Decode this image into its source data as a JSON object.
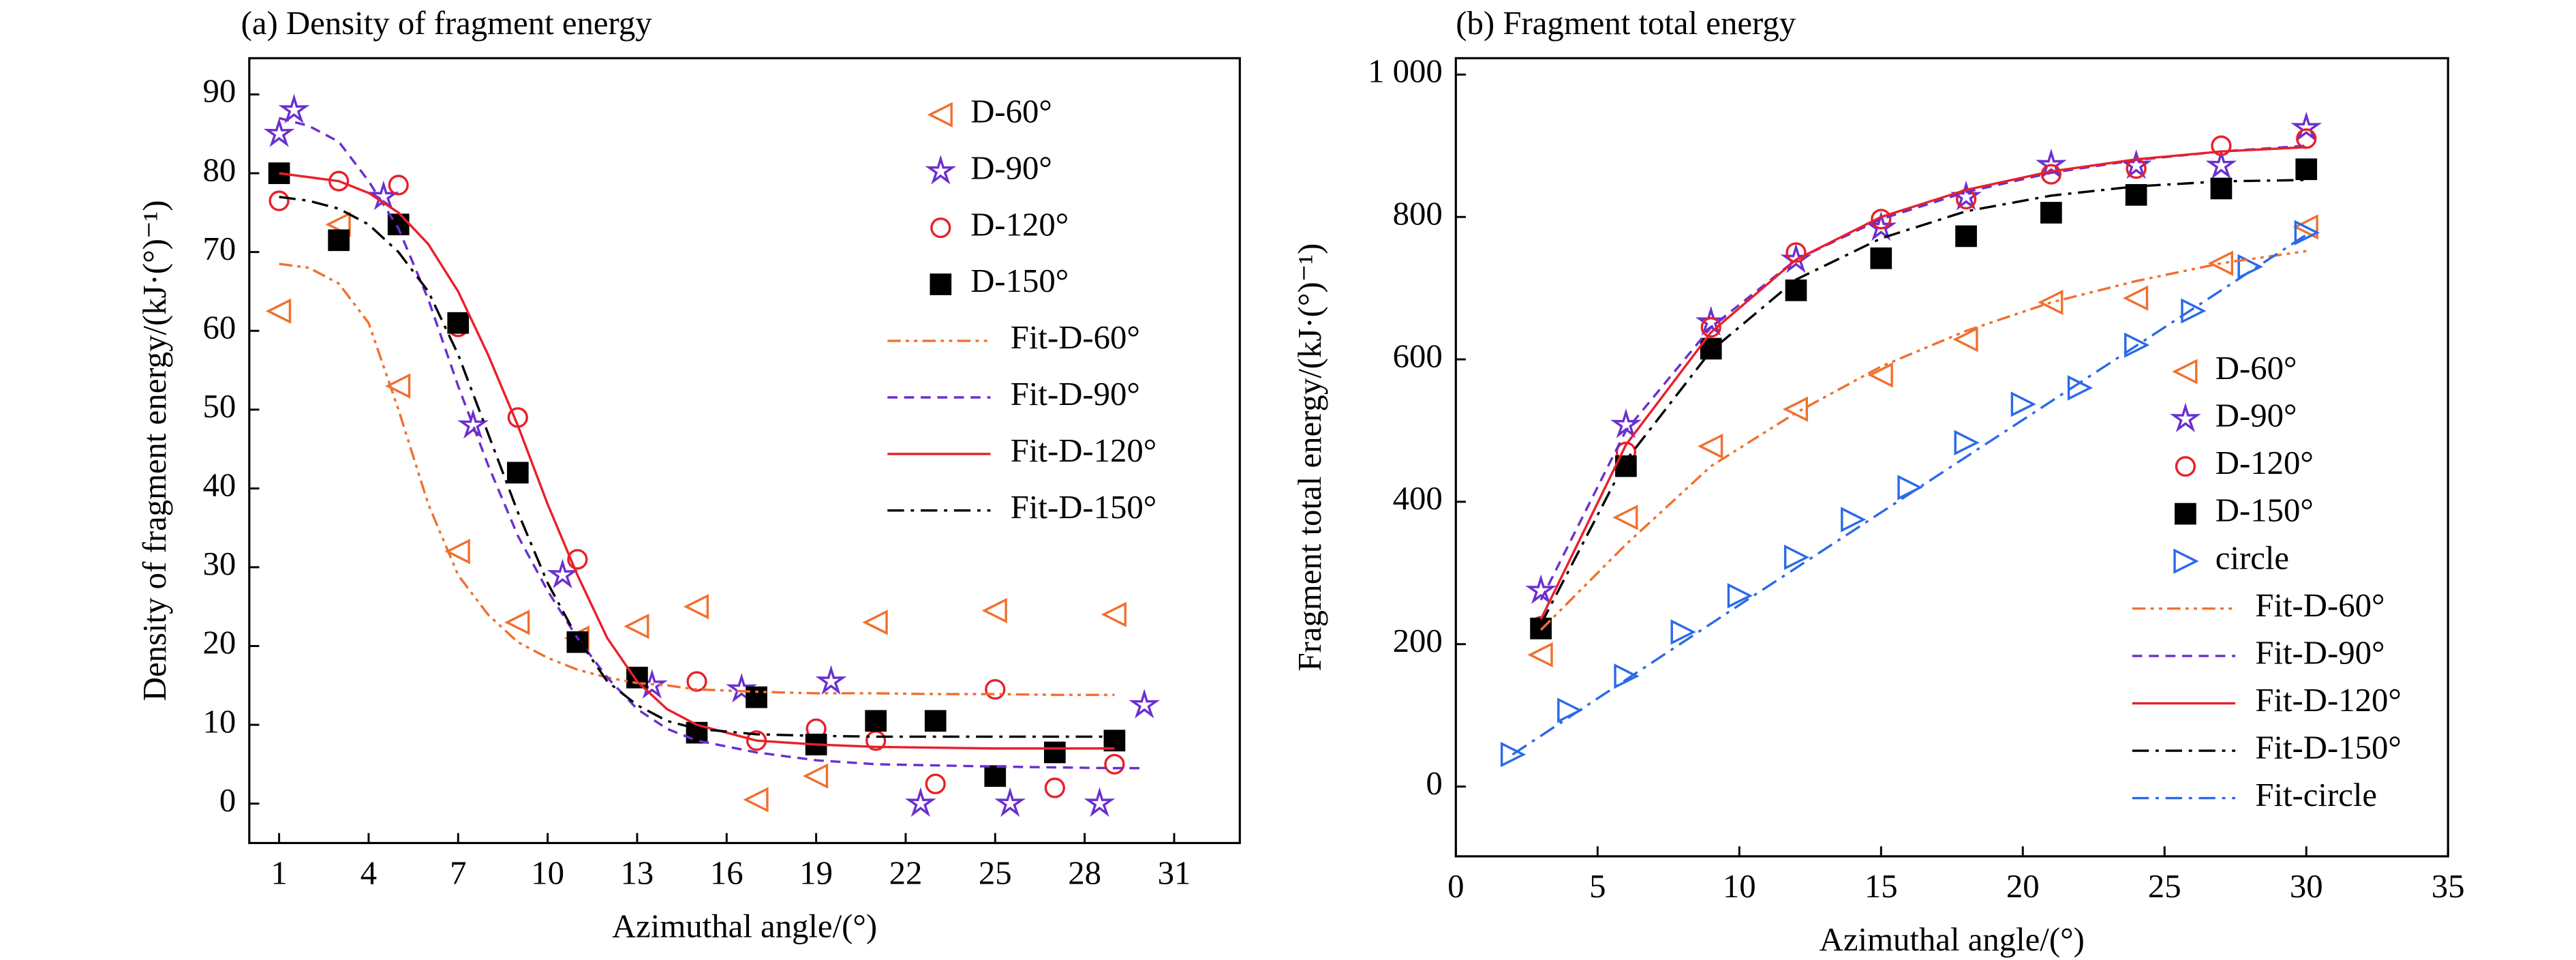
{
  "chart_data": [
    {
      "type": "scatter",
      "title": "(a) Density of fragment energy",
      "xlabel": "Azimuthal angle/(°)",
      "ylabel": "Density of fragment energy/(kJ·(°)⁻¹)",
      "xlim": [
        0,
        33.2
      ],
      "xticks": [
        1,
        4,
        7,
        10,
        13,
        16,
        19,
        22,
        25,
        28,
        31
      ],
      "ylim": [
        -5,
        94.6
      ],
      "yticks": [
        0,
        10,
        20,
        30,
        40,
        50,
        60,
        70,
        80,
        90
      ],
      "legend": "upper right",
      "series": [
        {
          "name": "D-60°",
          "color": "#f07030",
          "marker": "triangle-left",
          "x": [
            1,
            3,
            5,
            7,
            9,
            11,
            13,
            15,
            17,
            19,
            21,
            25,
            29
          ],
          "values": [
            62.5,
            73.5,
            53,
            32,
            23,
            21,
            22.5,
            25,
            0.5,
            3.5,
            23,
            24.5,
            24
          ]
        },
        {
          "name": "D-90°",
          "color": "#6a2fcf",
          "marker": "star",
          "x": [
            1,
            1.5,
            4.5,
            7.5,
            10.5,
            13.5,
            16.5,
            19.5,
            22.5,
            25.5,
            28.5,
            30
          ],
          "values": [
            85,
            88,
            77,
            48,
            29,
            15,
            14.5,
            15.5,
            0,
            0,
            0,
            12.5
          ]
        },
        {
          "name": "D-120°",
          "color": "#e8202a",
          "marker": "circle",
          "x": [
            1,
            3,
            5,
            7,
            9,
            11,
            13,
            15,
            17,
            19,
            21,
            23,
            25,
            27,
            29
          ],
          "values": [
            76.5,
            79,
            78.5,
            60.5,
            49,
            31,
            16,
            15.5,
            8,
            9.5,
            8,
            2.5,
            14.5,
            2,
            5
          ]
        },
        {
          "name": "D-150°",
          "color": "#000000",
          "marker": "square",
          "x": [
            1,
            3,
            5,
            7,
            9,
            11,
            13,
            15,
            17,
            19,
            21,
            23,
            25,
            27,
            29
          ],
          "values": [
            80,
            71.5,
            73.5,
            61,
            42,
            20.5,
            16,
            9,
            13.5,
            7.5,
            10.5,
            10.5,
            3.5,
            6.5,
            8
          ]
        },
        {
          "name": "Fit-D-60°",
          "color": "#f07030",
          "line": "dashdotdot",
          "x": [
            1,
            2,
            3,
            4,
            5,
            6,
            7,
            8,
            9,
            10,
            11,
            12,
            13,
            14,
            15,
            17,
            19,
            21,
            23,
            25,
            27,
            29
          ],
          "values": [
            68.5,
            68,
            66,
            61,
            50,
            38,
            29,
            24,
            20.5,
            18.5,
            17,
            16,
            15.3,
            15,
            14.5,
            14.2,
            14,
            14,
            13.9,
            13.9,
            13.8,
            13.8
          ]
        },
        {
          "name": "Fit-D-90°",
          "color": "#6a2fcf",
          "line": "dash",
          "x": [
            1,
            2,
            3,
            4,
            5,
            6,
            7,
            8,
            9,
            10,
            11,
            12,
            13,
            14,
            15,
            17,
            19,
            21,
            25,
            29,
            30
          ],
          "values": [
            87,
            86,
            84,
            79,
            73,
            64,
            53,
            43,
            34,
            27,
            21,
            16,
            12,
            9.5,
            8,
            6.5,
            5.5,
            5,
            4.7,
            4.5,
            4.5
          ]
        },
        {
          "name": "Fit-D-120°",
          "color": "#e8202a",
          "line": "solid",
          "x": [
            1,
            2,
            3,
            4,
            5,
            6,
            7,
            8,
            9,
            10,
            11,
            12,
            13,
            14,
            15,
            17,
            19,
            21,
            25,
            29
          ],
          "values": [
            80,
            79.5,
            79,
            77.5,
            75,
            71,
            65,
            57,
            48,
            38,
            29,
            21,
            15.5,
            12,
            10,
            8,
            7.5,
            7.2,
            7,
            7
          ]
        },
        {
          "name": "Fit-D-150°",
          "color": "#000000",
          "line": "dashdot",
          "x": [
            1,
            2,
            3,
            4,
            5,
            6,
            7,
            8,
            9,
            10,
            11,
            12,
            13,
            14,
            15,
            17,
            19,
            21,
            25,
            29
          ],
          "values": [
            77,
            76.5,
            75.5,
            73.5,
            70,
            65,
            57,
            47,
            37,
            28,
            21,
            15.5,
            12.5,
            10.5,
            9.5,
            8.8,
            8.6,
            8.5,
            8.5,
            8.5
          ]
        }
      ]
    },
    {
      "type": "scatter",
      "title": "(b) Fragment total energy",
      "xlabel": "Azimuthal angle/(°)",
      "ylabel": "Fragment total energy/(kJ·(°)⁻¹)",
      "xlim": [
        0,
        35
      ],
      "xticks": [
        0,
        5,
        10,
        15,
        20,
        25,
        30,
        35
      ],
      "ylim": [
        -98,
        1023
      ],
      "yticks": [
        0,
        200,
        400,
        600,
        800,
        {
          "value": 1000,
          "label": "1 000"
        }
      ],
      "legend": "lower right",
      "series": [
        {
          "name": "D-60°",
          "color": "#f07030",
          "marker": "triangle-left",
          "x": [
            3,
            6,
            9,
            12,
            15,
            18,
            21,
            24,
            27,
            30
          ],
          "values": [
            185,
            378,
            478,
            530,
            578,
            628,
            680,
            686,
            735,
            786
          ]
        },
        {
          "name": "D-90°",
          "color": "#6a2fcf",
          "marker": "star",
          "x": [
            3,
            6,
            9,
            12,
            15,
            18,
            21,
            24,
            27,
            30
          ],
          "values": [
            275,
            508,
            652,
            740,
            785,
            828,
            873,
            872,
            872,
            925
          ]
        },
        {
          "name": "D-120°",
          "color": "#e8202a",
          "marker": "circle",
          "x": [
            3,
            6,
            9,
            12,
            15,
            18,
            21,
            24,
            27,
            30
          ],
          "values": [
            225,
            470,
            645,
            750,
            797,
            825,
            860,
            868,
            900,
            910
          ]
        },
        {
          "name": "D-150°",
          "color": "#000000",
          "marker": "square",
          "x": [
            3,
            6,
            9,
            12,
            15,
            18,
            21,
            24,
            27,
            30
          ],
          "values": [
            222,
            450,
            615,
            697,
            742,
            773,
            806,
            831,
            840,
            867
          ]
        },
        {
          "name": "circle",
          "color": "#2a6ae8",
          "marker": "triangle-right",
          "x": [
            2,
            4,
            6,
            8,
            10,
            12,
            14,
            16,
            18,
            20,
            22,
            24,
            26,
            28,
            30
          ],
          "values": [
            45,
            107,
            155,
            217,
            268,
            322,
            375,
            420,
            483,
            537,
            560,
            620,
            668,
            730,
            778
          ]
        },
        {
          "name": "Fit-D-60°",
          "color": "#f07030",
          "line": "dashdotdot",
          "x": [
            3,
            6,
            9,
            12,
            15,
            18,
            21,
            24,
            27,
            30
          ],
          "values": [
            220,
            340,
            450,
            525,
            590,
            640,
            680,
            710,
            735,
            752
          ]
        },
        {
          "name": "Fit-D-90°",
          "color": "#6a2fcf",
          "line": "dash",
          "x": [
            3,
            6,
            9,
            12,
            15,
            18,
            21,
            24,
            27,
            30
          ],
          "values": [
            262,
            500,
            645,
            740,
            797,
            835,
            862,
            880,
            892,
            900
          ]
        },
        {
          "name": "Fit-D-120°",
          "color": "#e8202a",
          "line": "solid",
          "x": [
            3,
            6,
            9,
            12,
            15,
            18,
            21,
            24,
            27,
            30
          ],
          "values": [
            235,
            480,
            638,
            740,
            800,
            838,
            864,
            881,
            892,
            898
          ]
        },
        {
          "name": "Fit-D-150°",
          "color": "#000000",
          "line": "dashdot",
          "x": [
            3,
            6,
            9,
            12,
            15,
            18,
            21,
            24,
            27,
            30
          ],
          "values": [
            228,
            458,
            612,
            712,
            770,
            808,
            830,
            843,
            850,
            852
          ]
        },
        {
          "name": "Fit-circle",
          "color": "#2a6ae8",
          "line": "dashdot",
          "x": [
            2,
            10,
            20,
            30
          ],
          "values": [
            45,
            255,
            515,
            775
          ]
        }
      ]
    }
  ]
}
